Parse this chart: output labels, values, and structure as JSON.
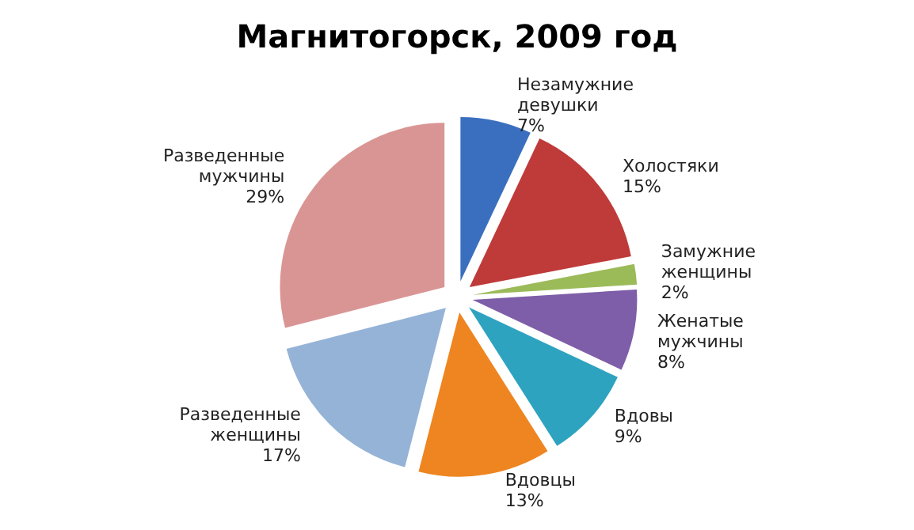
{
  "chart_data": {
    "type": "pie",
    "title": "Магнитогорск, 2009 год",
    "categories": [
      "Незамужние девушки",
      "Холостяки",
      "Замужние женщины",
      "Женатые мужчины",
      "Вдовы",
      "Вдовцы",
      "Разведенные женщины",
      "Разведенные мужчины"
    ],
    "values": [
      7,
      15,
      2,
      8,
      9,
      13,
      17,
      29
    ],
    "value_labels": [
      "7%",
      "15%",
      "2%",
      "8%",
      "9%",
      "13%",
      "17%",
      "29%"
    ],
    "colors": [
      "#3a6fbf",
      "#be3b3a",
      "#9bbb59",
      "#7e5ea8",
      "#2ea3c0",
      "#ee8520",
      "#95b3d7",
      "#d99594"
    ],
    "legend": false
  }
}
